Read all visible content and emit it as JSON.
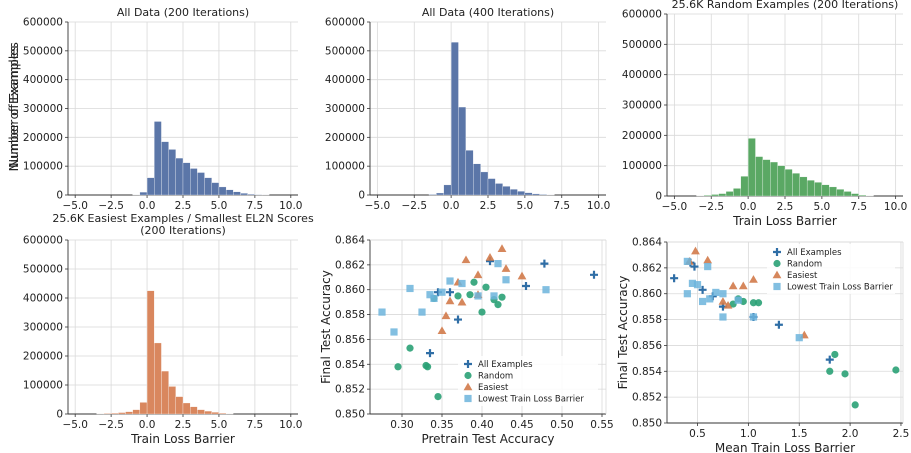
{
  "colors": {
    "blue": "#5b76a8",
    "green": "#5aa864",
    "orange": "#d9875e",
    "all_examples": "#2f6ea6",
    "random": "#2aa176",
    "easiest": "#d27a4a",
    "lowest_loss": "#6cb4dc"
  },
  "chart_data": [
    {
      "id": "hist_all_200",
      "type": "bar",
      "title": "All Data (200 Iterations)",
      "xlabel": "",
      "ylabel": "Number of Examples",
      "xlim": [
        -5.5,
        10.5
      ],
      "ylim": [
        0,
        600000
      ],
      "xticks": [
        -5.0,
        -2.5,
        0.0,
        2.5,
        5.0,
        7.5,
        10.0
      ],
      "xtick_labels": [
        "−5.0",
        "−2.5",
        "0.0",
        "2.5",
        "5.0",
        "7.5",
        "10.0"
      ],
      "yticks": [
        0,
        100000,
        200000,
        300000,
        400000,
        500000,
        600000
      ],
      "ytick_labels": [
        "0",
        "100000",
        "200000",
        "300000",
        "400000",
        "500000",
        "600000"
      ],
      "show_yticklabels": true,
      "grid": true,
      "color": "blue",
      "bin_width": 0.5,
      "bins": [
        [
          -1.0,
          1000
        ],
        [
          -0.5,
          10000
        ],
        [
          0.0,
          60000
        ],
        [
          0.5,
          255000
        ],
        [
          1.0,
          185000
        ],
        [
          1.5,
          158000
        ],
        [
          2.0,
          128000
        ],
        [
          2.5,
          112000
        ],
        [
          3.0,
          92000
        ],
        [
          3.5,
          78000
        ],
        [
          4.0,
          60000
        ],
        [
          4.5,
          43000
        ],
        [
          5.0,
          28000
        ],
        [
          5.5,
          18000
        ],
        [
          6.0,
          11000
        ],
        [
          6.5,
          6000
        ],
        [
          7.0,
          3000
        ],
        [
          7.5,
          1500
        ],
        [
          8.0,
          700
        ]
      ]
    },
    {
      "id": "hist_all_400",
      "type": "bar",
      "title": "All Data (400 Iterations)",
      "xlabel": "",
      "ylabel": "",
      "xlim": [
        -5.5,
        10.5
      ],
      "ylim": [
        0,
        600000
      ],
      "xticks": [
        -5.0,
        -2.5,
        0.0,
        2.5,
        5.0,
        7.5,
        10.0
      ],
      "xtick_labels": [
        "−5.0",
        "−2.5",
        "0.0",
        "2.5",
        "5.0",
        "7.5",
        "10.0"
      ],
      "yticks": [
        0,
        100000,
        200000,
        300000,
        400000,
        500000,
        600000
      ],
      "ytick_labels": [
        "0",
        "100000",
        "200000",
        "300000",
        "400000",
        "500000",
        "600000"
      ],
      "show_yticklabels": true,
      "grid": true,
      "color": "blue",
      "bin_width": 0.5,
      "bins": [
        [
          -1.5,
          2000
        ],
        [
          -1.0,
          7000
        ],
        [
          -0.5,
          35000
        ],
        [
          0.0,
          530000
        ],
        [
          0.5,
          305000
        ],
        [
          1.0,
          155000
        ],
        [
          1.5,
          108000
        ],
        [
          2.0,
          80000
        ],
        [
          2.5,
          57000
        ],
        [
          3.0,
          40000
        ],
        [
          3.5,
          30000
        ],
        [
          4.0,
          20000
        ],
        [
          4.5,
          13000
        ],
        [
          5.0,
          8000
        ],
        [
          5.5,
          4000
        ],
        [
          6.0,
          2000
        ],
        [
          6.5,
          800
        ]
      ]
    },
    {
      "id": "hist_random_200",
      "type": "bar",
      "title": "25.6K Random Examples (200 Iterations)",
      "xlabel": "Train Loss Barrier",
      "ylabel": "Number of Examples",
      "xlim": [
        -5.5,
        10.5
      ],
      "ylim": [
        0,
        600000
      ],
      "xticks": [
        -5.0,
        -2.5,
        0.0,
        2.5,
        5.0,
        7.5,
        10.0
      ],
      "xtick_labels": [
        "−5.0",
        "−2.5",
        "0.0",
        "2.5",
        "5.0",
        "7.5",
        "10.0"
      ],
      "yticks": [
        0,
        100000,
        200000,
        300000,
        400000,
        500000,
        600000
      ],
      "ytick_labels": [
        "0",
        "100000",
        "200000",
        "300000",
        "400000",
        "500000",
        "600000"
      ],
      "show_yticklabels": true,
      "grid": true,
      "color": "green",
      "bin_width": 0.5,
      "bins": [
        [
          -3.5,
          1000
        ],
        [
          -3.0,
          2500
        ],
        [
          -2.5,
          5000
        ],
        [
          -2.0,
          8000
        ],
        [
          -1.5,
          15000
        ],
        [
          -1.0,
          25000
        ],
        [
          -0.5,
          65000
        ],
        [
          0.0,
          190000
        ],
        [
          0.5,
          130000
        ],
        [
          1.0,
          120000
        ],
        [
          1.5,
          112000
        ],
        [
          2.0,
          100000
        ],
        [
          2.5,
          88000
        ],
        [
          3.0,
          75000
        ],
        [
          3.5,
          63000
        ],
        [
          4.0,
          52000
        ],
        [
          4.5,
          45000
        ],
        [
          5.0,
          37000
        ],
        [
          5.5,
          30000
        ],
        [
          6.0,
          22000
        ],
        [
          6.5,
          15000
        ],
        [
          7.0,
          8000
        ],
        [
          7.5,
          3000
        ],
        [
          8.0,
          1000
        ]
      ]
    },
    {
      "id": "hist_easiest_200",
      "type": "bar",
      "title": "25.6K Easiest Examples / Smallest EL2N Scores\n(200 Iterations)",
      "xlabel": "Train Loss Barrier",
      "ylabel": "",
      "xlim": [
        -5.5,
        10.5
      ],
      "ylim": [
        0,
        600000
      ],
      "xticks": [
        -5.0,
        -2.5,
        0.0,
        2.5,
        5.0,
        7.5,
        10.0
      ],
      "xtick_labels": [
        "−5.0",
        "−2.5",
        "0.0",
        "2.5",
        "5.0",
        "7.5",
        "10.0"
      ],
      "yticks": [
        0,
        100000,
        200000,
        300000,
        400000,
        500000,
        600000
      ],
      "ytick_labels": [
        "0",
        "100000",
        "200000",
        "300000",
        "400000",
        "500000",
        "600000"
      ],
      "show_yticklabels": true,
      "grid": true,
      "color": "orange",
      "bin_width": 0.5,
      "bins": [
        [
          -3.5,
          1000
        ],
        [
          -3.0,
          2000
        ],
        [
          -2.5,
          3000
        ],
        [
          -2.0,
          5000
        ],
        [
          -1.5,
          8000
        ],
        [
          -1.0,
          15000
        ],
        [
          -0.5,
          40000
        ],
        [
          0.0,
          425000
        ],
        [
          0.5,
          245000
        ],
        [
          1.0,
          148000
        ],
        [
          1.5,
          95000
        ],
        [
          2.0,
          60000
        ],
        [
          2.5,
          38000
        ],
        [
          3.0,
          25000
        ],
        [
          3.5,
          15000
        ],
        [
          4.0,
          10000
        ],
        [
          4.5,
          6000
        ],
        [
          5.0,
          3000
        ],
        [
          5.5,
          1000
        ]
      ]
    },
    {
      "id": "scatter_pretrain",
      "type": "scatter",
      "title": "",
      "xlabel": "Pretrain Test Accuracy",
      "ylabel": "Final Test Accuracy",
      "xlim": [
        0.26,
        0.555
      ],
      "ylim": [
        0.85,
        0.864
      ],
      "xticks": [
        0.3,
        0.35,
        0.4,
        0.45,
        0.5,
        0.55
      ],
      "xtick_labels": [
        "0.30",
        "0.35",
        "0.40",
        "0.45",
        "0.50",
        "0.55"
      ],
      "yticks": [
        0.85,
        0.852,
        0.854,
        0.856,
        0.858,
        0.86,
        0.862,
        0.864
      ],
      "ytick_labels": [
        "0.850",
        "0.852",
        "0.854",
        "0.856",
        "0.858",
        "0.860",
        "0.862",
        "0.864"
      ],
      "grid": true,
      "legend_position": "bottom-right",
      "series": [
        {
          "name": "All Examples",
          "marker": "plus",
          "color": "all_examples",
          "points": [
            [
              0.335,
              0.8549
            ],
            [
              0.37,
              0.8576
            ],
            [
              0.36,
              0.8598
            ],
            [
              0.41,
              0.8623
            ],
            [
              0.455,
              0.8603
            ],
            [
              0.478,
              0.8621
            ],
            [
              0.54,
              0.8612
            ],
            [
              0.345,
              0.8598
            ]
          ]
        },
        {
          "name": "Random",
          "marker": "circle",
          "color": "random",
          "points": [
            [
              0.295,
              0.8538
            ],
            [
              0.31,
              0.8553
            ],
            [
              0.33,
              0.8539
            ],
            [
              0.332,
              0.8538
            ],
            [
              0.345,
              0.8514
            ],
            [
              0.34,
              0.8593
            ],
            [
              0.37,
              0.8595
            ],
            [
              0.385,
              0.8596
            ],
            [
              0.4,
              0.8582
            ],
            [
              0.42,
              0.8588
            ],
            [
              0.415,
              0.8592
            ],
            [
              0.425,
              0.8594
            ],
            [
              0.405,
              0.8602
            ],
            [
              0.39,
              0.8606
            ]
          ]
        },
        {
          "name": "Easiest",
          "marker": "triangle",
          "color": "easiest",
          "points": [
            [
              0.35,
              0.8567
            ],
            [
              0.355,
              0.8579
            ],
            [
              0.37,
              0.8606
            ],
            [
              0.38,
              0.8624
            ],
            [
              0.395,
              0.8612
            ],
            [
              0.41,
              0.8626
            ],
            [
              0.425,
              0.8633
            ],
            [
              0.45,
              0.8611
            ],
            [
              0.375,
              0.859
            ],
            [
              0.395,
              0.8596
            ],
            [
              0.36,
              0.8591
            ],
            [
              0.43,
              0.8617
            ]
          ]
        },
        {
          "name": "Lowest Train Loss Barrier",
          "marker": "square",
          "color": "lowest_loss",
          "points": [
            [
              0.275,
              0.8582
            ],
            [
              0.29,
              0.8566
            ],
            [
              0.31,
              0.8601
            ],
            [
              0.325,
              0.8582
            ],
            [
              0.335,
              0.8596
            ],
            [
              0.34,
              0.8593
            ],
            [
              0.35,
              0.8598
            ],
            [
              0.36,
              0.8607
            ],
            [
              0.375,
              0.8605
            ],
            [
              0.395,
              0.8595
            ],
            [
              0.415,
              0.8595
            ],
            [
              0.42,
              0.8621
            ],
            [
              0.43,
              0.8608
            ],
            [
              0.48,
              0.86
            ]
          ]
        }
      ]
    },
    {
      "id": "scatter_mean_loss",
      "type": "scatter",
      "title": "",
      "xlabel": "Mean Train Loss Barrier",
      "ylabel": "Final Test Accuracy",
      "xlim": [
        0.2,
        2.52
      ],
      "ylim": [
        0.85,
        0.864
      ],
      "xticks": [
        0.5,
        1.0,
        1.5,
        2.0,
        2.5
      ],
      "xtick_labels": [
        "0.5",
        "1.0",
        "1.5",
        "2.0",
        "2.5"
      ],
      "yticks": [
        0.85,
        0.852,
        0.854,
        0.856,
        0.858,
        0.86,
        0.862,
        0.864
      ],
      "ytick_labels": [
        "0.850",
        "0.852",
        "0.854",
        "0.856",
        "0.858",
        "0.860",
        "0.862",
        "0.864"
      ],
      "grid": true,
      "legend_position": "top-right",
      "series": [
        {
          "name": "All Examples",
          "marker": "plus",
          "color": "all_examples",
          "points": [
            [
              0.27,
              0.8612
            ],
            [
              0.43,
              0.8624
            ],
            [
              0.47,
              0.8621
            ],
            [
              0.55,
              0.8603
            ],
            [
              0.65,
              0.8598
            ],
            [
              0.75,
              0.859
            ],
            [
              1.05,
              0.8582
            ],
            [
              1.3,
              0.8576
            ],
            [
              1.8,
              0.8549
            ]
          ]
        },
        {
          "name": "Random",
          "marker": "circle",
          "color": "random",
          "points": [
            [
              0.85,
              0.8592
            ],
            [
              0.95,
              0.8594
            ],
            [
              1.05,
              0.8593
            ],
            [
              1.1,
              0.8593
            ],
            [
              1.8,
              0.854
            ],
            [
              1.85,
              0.8553
            ],
            [
              1.95,
              0.8538
            ],
            [
              2.05,
              0.8514
            ],
            [
              2.45,
              0.8541
            ],
            [
              0.9,
              0.8596
            ]
          ]
        },
        {
          "name": "Easiest",
          "marker": "triangle",
          "color": "easiest",
          "points": [
            [
              0.42,
              0.8625
            ],
            [
              0.48,
              0.8633
            ],
            [
              0.6,
              0.8626
            ],
            [
              0.75,
              0.8594
            ],
            [
              0.85,
              0.8606
            ],
            [
              0.95,
              0.8606
            ],
            [
              1.05,
              0.8611
            ],
            [
              1.55,
              0.8568
            ],
            [
              0.8,
              0.8591
            ]
          ]
        },
        {
          "name": "Lowest Train Loss Barrier",
          "marker": "square",
          "color": "lowest_loss",
          "points": [
            [
              0.4,
              0.8625
            ],
            [
              0.45,
              0.8608
            ],
            [
              0.5,
              0.8607
            ],
            [
              0.6,
              0.8621
            ],
            [
              0.62,
              0.8596
            ],
            [
              0.68,
              0.8601
            ],
            [
              0.75,
              0.8582
            ],
            [
              0.55,
              0.8594
            ],
            [
              0.75,
              0.86
            ],
            [
              0.9,
              0.8595
            ],
            [
              1.05,
              0.8582
            ],
            [
              1.5,
              0.8566
            ],
            [
              0.4,
              0.86
            ]
          ]
        }
      ]
    }
  ]
}
